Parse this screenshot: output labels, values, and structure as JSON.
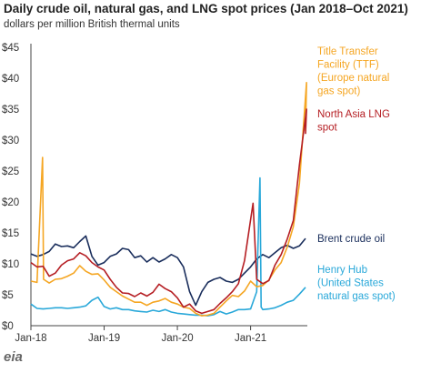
{
  "title": "Daily crude oil, natural gas, and LNG spot prices (Jan 2018–Oct 2021)",
  "subtitle": "dollars per million British thermal units",
  "logo_text": "eia",
  "chart_data": {
    "type": "line",
    "ylim": [
      0,
      45
    ],
    "y_ticks": [
      {
        "value": 0,
        "label": "$0"
      },
      {
        "value": 5,
        "label": "$5"
      },
      {
        "value": 10,
        "label": "$10"
      },
      {
        "value": 15,
        "label": "$15"
      },
      {
        "value": 20,
        "label": "$20"
      },
      {
        "value": 25,
        "label": "$25"
      },
      {
        "value": 30,
        "label": "$30"
      },
      {
        "value": 35,
        "label": "$35"
      },
      {
        "value": 40,
        "label": "$40"
      },
      {
        "value": 45,
        "label": "$45"
      }
    ],
    "xlim": [
      "2018-01",
      "2021-10"
    ],
    "x_ticks": [
      {
        "value": "2018-01",
        "label": "Jan-18"
      },
      {
        "value": "2019-01",
        "label": "Jan-19"
      },
      {
        "value": "2020-01",
        "label": "Jan-20"
      },
      {
        "value": "2021-01",
        "label": "Jan-21"
      }
    ],
    "grid": false,
    "series": [
      {
        "name": "Brent crude oil",
        "legend_lines": [
          "Brent crude oil"
        ],
        "color": "#1a2e5c",
        "points": [
          [
            "2018-01",
            11.6
          ],
          [
            "2018-02",
            11.2
          ],
          [
            "2018-03",
            11.5
          ],
          [
            "2018-04",
            12.0
          ],
          [
            "2018-05",
            13.2
          ],
          [
            "2018-06",
            12.8
          ],
          [
            "2018-07",
            12.9
          ],
          [
            "2018-08",
            12.6
          ],
          [
            "2018-09",
            13.6
          ],
          [
            "2018-10",
            14.5
          ],
          [
            "2018-11",
            11.2
          ],
          [
            "2018-12",
            9.8
          ],
          [
            "2019-01",
            10.2
          ],
          [
            "2019-02",
            11.2
          ],
          [
            "2019-03",
            11.6
          ],
          [
            "2019-04",
            12.5
          ],
          [
            "2019-05",
            12.3
          ],
          [
            "2019-06",
            11.0
          ],
          [
            "2019-07",
            11.3
          ],
          [
            "2019-08",
            10.3
          ],
          [
            "2019-09",
            11.0
          ],
          [
            "2019-10",
            10.3
          ],
          [
            "2019-11",
            10.8
          ],
          [
            "2019-12",
            11.5
          ],
          [
            "2020-01",
            11.0
          ],
          [
            "2020-02",
            9.5
          ],
          [
            "2020-03",
            5.5
          ],
          [
            "2020-04",
            3.3
          ],
          [
            "2020-05",
            5.5
          ],
          [
            "2020-06",
            7.0
          ],
          [
            "2020-07",
            7.5
          ],
          [
            "2020-08",
            7.8
          ],
          [
            "2020-09",
            7.2
          ],
          [
            "2020-10",
            7.0
          ],
          [
            "2020-11",
            7.5
          ],
          [
            "2020-12",
            8.5
          ],
          [
            "2021-01",
            9.5
          ],
          [
            "2021-02",
            10.8
          ],
          [
            "2021-03",
            11.5
          ],
          [
            "2021-04",
            11.0
          ],
          [
            "2021-05",
            11.8
          ],
          [
            "2021-06",
            12.6
          ],
          [
            "2021-07",
            13.0
          ],
          [
            "2021-08",
            12.5
          ],
          [
            "2021-09",
            12.9
          ],
          [
            "2021-10",
            14.1
          ]
        ]
      },
      {
        "name": "Henry Hub",
        "legend_lines": [
          "Henry Hub",
          "(United States",
          "natural gas spot)"
        ],
        "color": "#29a8d9",
        "points": [
          [
            "2018-01",
            3.5
          ],
          [
            "2018-02",
            2.8
          ],
          [
            "2018-03",
            2.7
          ],
          [
            "2018-04",
            2.8
          ],
          [
            "2018-05",
            2.9
          ],
          [
            "2018-06",
            2.9
          ],
          [
            "2018-07",
            2.8
          ],
          [
            "2018-08",
            2.9
          ],
          [
            "2018-09",
            3.0
          ],
          [
            "2018-10",
            3.2
          ],
          [
            "2018-11",
            4.1
          ],
          [
            "2018-12",
            4.6
          ],
          [
            "2019-01",
            3.1
          ],
          [
            "2019-02",
            2.7
          ],
          [
            "2019-03",
            2.9
          ],
          [
            "2019-04",
            2.6
          ],
          [
            "2019-05",
            2.6
          ],
          [
            "2019-06",
            2.4
          ],
          [
            "2019-07",
            2.3
          ],
          [
            "2019-08",
            2.2
          ],
          [
            "2019-09",
            2.5
          ],
          [
            "2019-10",
            2.3
          ],
          [
            "2019-11",
            2.6
          ],
          [
            "2019-12",
            2.2
          ],
          [
            "2020-01",
            2.0
          ],
          [
            "2020-02",
            1.9
          ],
          [
            "2020-03",
            1.8
          ],
          [
            "2020-04",
            1.7
          ],
          [
            "2020-05",
            1.7
          ],
          [
            "2020-06",
            1.6
          ],
          [
            "2020-07",
            1.8
          ],
          [
            "2020-08",
            2.3
          ],
          [
            "2020-09",
            1.9
          ],
          [
            "2020-10",
            2.2
          ],
          [
            "2020-11",
            2.6
          ],
          [
            "2020-12",
            2.6
          ],
          [
            "2021-01",
            2.7
          ],
          [
            "2021-02",
            5.5
          ],
          [
            "2021-02-17",
            23.9
          ],
          [
            "2021-02-23",
            3.0
          ],
          [
            "2021-03",
            2.6
          ],
          [
            "2021-04",
            2.7
          ],
          [
            "2021-05",
            2.9
          ],
          [
            "2021-06",
            3.3
          ],
          [
            "2021-07",
            3.8
          ],
          [
            "2021-08",
            4.1
          ],
          [
            "2021-09",
            5.1
          ],
          [
            "2021-10",
            6.2
          ]
        ]
      },
      {
        "name": "Title Transfer Facility (TTF)",
        "legend_lines": [
          "Title Transfer",
          "Facility (TTF)",
          "(Europe natural",
          "gas spot)"
        ],
        "color": "#f5a623",
        "points": [
          [
            "2018-01",
            7.2
          ],
          [
            "2018-02",
            7.0
          ],
          [
            "2018-02-28",
            27.2
          ],
          [
            "2018-03-03",
            7.5
          ],
          [
            "2018-04",
            6.9
          ],
          [
            "2018-05",
            7.5
          ],
          [
            "2018-06",
            7.6
          ],
          [
            "2018-07",
            8.0
          ],
          [
            "2018-08",
            8.5
          ],
          [
            "2018-09",
            9.7
          ],
          [
            "2018-10",
            8.8
          ],
          [
            "2018-11",
            8.3
          ],
          [
            "2018-12",
            8.4
          ],
          [
            "2019-01",
            7.4
          ],
          [
            "2019-02",
            6.2
          ],
          [
            "2019-03",
            5.5
          ],
          [
            "2019-04",
            4.8
          ],
          [
            "2019-05",
            4.3
          ],
          [
            "2019-06",
            3.8
          ],
          [
            "2019-07",
            3.8
          ],
          [
            "2019-08",
            3.3
          ],
          [
            "2019-09",
            3.8
          ],
          [
            "2019-10",
            4.0
          ],
          [
            "2019-11",
            4.4
          ],
          [
            "2019-12",
            3.8
          ],
          [
            "2020-01",
            3.5
          ],
          [
            "2020-02",
            3.0
          ],
          [
            "2020-03",
            2.8
          ],
          [
            "2020-04",
            2.0
          ],
          [
            "2020-05",
            1.6
          ],
          [
            "2020-06",
            1.7
          ],
          [
            "2020-07",
            2.0
          ],
          [
            "2020-08",
            3.0
          ],
          [
            "2020-09",
            4.0
          ],
          [
            "2020-10",
            4.9
          ],
          [
            "2020-11",
            4.7
          ],
          [
            "2020-12",
            5.6
          ],
          [
            "2021-01",
            7.2
          ],
          [
            "2021-02",
            6.3
          ],
          [
            "2021-03",
            6.5
          ],
          [
            "2021-04",
            7.4
          ],
          [
            "2021-05",
            9.0
          ],
          [
            "2021-06",
            10.2
          ],
          [
            "2021-07",
            12.7
          ],
          [
            "2021-08",
            16.0
          ],
          [
            "2021-09",
            23.0
          ],
          [
            "2021-10-06",
            39.3
          ],
          [
            "2021-10",
            31.5
          ]
        ]
      },
      {
        "name": "North Asia LNG spot",
        "legend_lines": [
          "North Asia LNG",
          "spot"
        ],
        "color": "#b51e23",
        "points": [
          [
            "2018-01",
            10.2
          ],
          [
            "2018-02",
            9.5
          ],
          [
            "2018-03",
            9.6
          ],
          [
            "2018-04",
            8.0
          ],
          [
            "2018-05",
            8.5
          ],
          [
            "2018-06",
            9.8
          ],
          [
            "2018-07",
            10.5
          ],
          [
            "2018-08",
            10.8
          ],
          [
            "2018-09",
            11.8
          ],
          [
            "2018-10",
            11.3
          ],
          [
            "2018-11",
            10.2
          ],
          [
            "2018-12",
            9.5
          ],
          [
            "2019-01",
            9.0
          ],
          [
            "2019-02",
            7.5
          ],
          [
            "2019-03",
            6.2
          ],
          [
            "2019-04",
            5.3
          ],
          [
            "2019-05",
            5.2
          ],
          [
            "2019-06",
            4.7
          ],
          [
            "2019-07",
            5.3
          ],
          [
            "2019-08",
            4.8
          ],
          [
            "2019-09",
            5.4
          ],
          [
            "2019-10",
            6.7
          ],
          [
            "2019-11",
            6.0
          ],
          [
            "2019-12",
            5.5
          ],
          [
            "2020-01",
            4.5
          ],
          [
            "2020-02",
            3.0
          ],
          [
            "2020-03",
            3.5
          ],
          [
            "2020-04",
            2.4
          ],
          [
            "2020-05",
            2.0
          ],
          [
            "2020-06",
            2.3
          ],
          [
            "2020-07",
            2.6
          ],
          [
            "2020-08",
            3.6
          ],
          [
            "2020-09",
            4.5
          ],
          [
            "2020-10",
            5.5
          ],
          [
            "2020-11",
            6.8
          ],
          [
            "2020-12",
            10.5
          ],
          [
            "2021-01-13",
            19.8
          ],
          [
            "2021-02",
            7.5
          ],
          [
            "2021-03",
            6.8
          ],
          [
            "2021-04",
            7.3
          ],
          [
            "2021-05",
            9.8
          ],
          [
            "2021-06",
            11.5
          ],
          [
            "2021-07",
            14.0
          ],
          [
            "2021-08",
            17.0
          ],
          [
            "2021-09",
            26.0
          ],
          [
            "2021-10-06",
            35.0
          ],
          [
            "2021-10",
            31.0
          ]
        ]
      }
    ]
  }
}
